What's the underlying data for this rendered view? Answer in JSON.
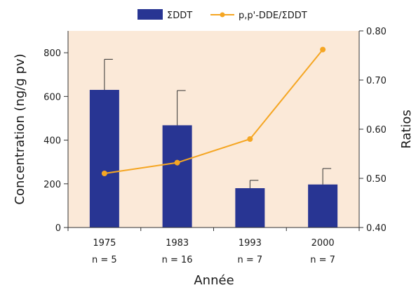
{
  "chart_data": {
    "type": "bar",
    "categories": [
      "1975",
      "1983",
      "1993",
      "2000"
    ],
    "sample_sizes": [
      "n = 5",
      "n = 16",
      "n = 7",
      "n = 7"
    ],
    "xlabel": "Année",
    "ylabel": "Concentration (ng/g pv)",
    "y2label": "Ratios",
    "ylim": [
      0,
      900
    ],
    "y2lim": [
      0.4,
      0.8
    ],
    "yticks": [
      "0",
      "200",
      "400",
      "600",
      "800"
    ],
    "y2ticks": [
      "0.40",
      "0.50",
      "0.60",
      "0.70",
      "0.80"
    ],
    "legend_position": "top",
    "plot_background": "#fbe9d8",
    "series": [
      {
        "name": "ΣDDT",
        "type": "bar",
        "axis": "left",
        "color": "#283593",
        "values": [
          630,
          468,
          180,
          197
        ],
        "error_upper": [
          770,
          627,
          216,
          270
        ]
      },
      {
        "name": "p,p'-DDE/ΣDDT",
        "type": "line",
        "axis": "right",
        "color": "#f5a623",
        "values": [
          0.51,
          0.532,
          0.58,
          0.762
        ]
      }
    ]
  }
}
